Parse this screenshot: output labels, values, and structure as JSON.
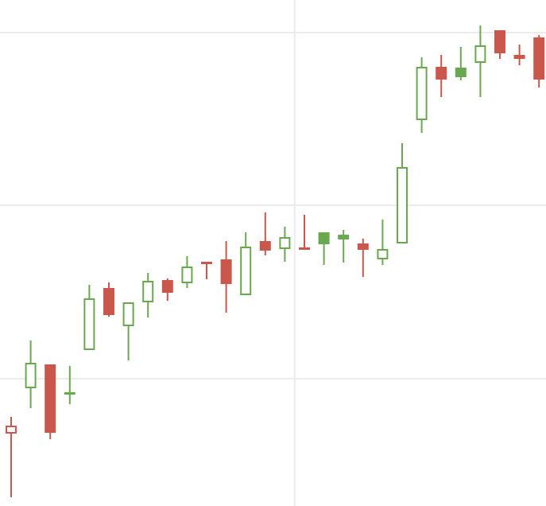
{
  "colors": {
    "background": "#ffffff",
    "grid": "#ebebeb",
    "rising": "#6aa84f",
    "falling": "#c9574b"
  },
  "chart_data": {
    "type": "candlestick",
    "x_range": [
      0,
      26.9
    ],
    "y_range": [
      0,
      636
    ],
    "grid": {
      "visible": true,
      "horizontal": [
        160,
        378,
        595
      ],
      "vertical": [
        14.5
      ]
    },
    "candles": [
      {
        "x": 0,
        "open": 91,
        "close": 101,
        "high": 112,
        "low": 11,
        "style": "hollow-red"
      },
      {
        "x": 1,
        "open": 148,
        "close": 180,
        "high": 208,
        "low": 123,
        "style": "hollow-green"
      },
      {
        "x": 2,
        "open": 178,
        "close": 92,
        "high": 178,
        "low": 84,
        "style": "filled-red"
      },
      {
        "x": 3,
        "open": 142,
        "close": 143,
        "high": 176,
        "low": 128,
        "style": "hollow-green"
      },
      {
        "x": 4,
        "open": 196,
        "close": 261,
        "high": 278,
        "low": 196,
        "style": "hollow-green"
      },
      {
        "x": 5,
        "open": 274,
        "close": 240,
        "high": 281,
        "low": 238,
        "style": "filled-red"
      },
      {
        "x": 6,
        "open": 226,
        "close": 256,
        "high": 256,
        "low": 183,
        "style": "hollow-green"
      },
      {
        "x": 7,
        "open": 256,
        "close": 283,
        "high": 293,
        "low": 237,
        "style": "hollow-green"
      },
      {
        "x": 8,
        "open": 284,
        "close": 268,
        "high": 286,
        "low": 258,
        "style": "filled-red"
      },
      {
        "x": 9,
        "open": 280,
        "close": 301,
        "high": 314,
        "low": 274,
        "style": "hollow-green"
      },
      {
        "x": 10,
        "open": 307,
        "close": 304,
        "high": 307,
        "low": 285,
        "style": "filled-red"
      },
      {
        "x": 11,
        "open": 310,
        "close": 279,
        "high": 333,
        "low": 243,
        "style": "filled-red"
      },
      {
        "x": 12,
        "open": 265,
        "close": 326,
        "high": 344,
        "low": 265,
        "style": "hollow-green"
      },
      {
        "x": 13,
        "open": 333,
        "close": 321,
        "high": 369,
        "low": 315,
        "style": "filled-red"
      },
      {
        "x": 14,
        "open": 323,
        "close": 338,
        "high": 351,
        "low": 307,
        "style": "hollow-green"
      },
      {
        "x": 15,
        "open": 325,
        "close": 322,
        "high": 366,
        "low": 322,
        "style": "filled-red"
      },
      {
        "x": 16,
        "open": 329,
        "close": 344,
        "high": 344,
        "low": 303,
        "style": "filled-green"
      },
      {
        "x": 17,
        "open": 335,
        "close": 341,
        "high": 347,
        "low": 306,
        "style": "filled-green"
      },
      {
        "x": 18,
        "open": 330,
        "close": 322,
        "high": 336,
        "low": 288,
        "style": "filled-red"
      },
      {
        "x": 19,
        "open": 310,
        "close": 323,
        "high": 360,
        "low": 303,
        "style": "hollow-green"
      },
      {
        "x": 20,
        "open": 330,
        "close": 426,
        "high": 456,
        "low": 330,
        "style": "hollow-green"
      },
      {
        "x": 21,
        "open": 485,
        "close": 552,
        "high": 564,
        "low": 469,
        "style": "hollow-green"
      },
      {
        "x": 22,
        "open": 552,
        "close": 536,
        "high": 567,
        "low": 514,
        "style": "filled-red"
      },
      {
        "x": 23,
        "open": 539,
        "close": 551,
        "high": 577,
        "low": 535,
        "style": "filled-green"
      },
      {
        "x": 24,
        "open": 557,
        "close": 579,
        "high": 604,
        "low": 514,
        "style": "hollow-green"
      },
      {
        "x": 25,
        "open": 598,
        "close": 569,
        "high": 598,
        "low": 562,
        "style": "filled-red"
      },
      {
        "x": 26,
        "open": 567,
        "close": 562,
        "high": 580,
        "low": 554,
        "style": "filled-red"
      },
      {
        "x": 27,
        "open": 589,
        "close": 536,
        "high": 592,
        "low": 526,
        "style": "filled-red"
      }
    ]
  }
}
